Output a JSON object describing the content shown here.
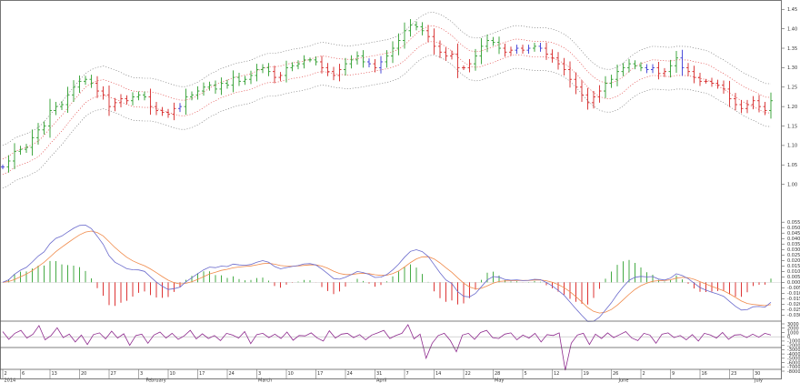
{
  "chart_data": [
    {
      "type": "candlestick-bands",
      "title": "",
      "ylim": [
        0.95,
        1.46
      ],
      "y_ticks": [
        "1.45",
        "1.40",
        "1.35",
        "1.30",
        "1.25",
        "1.20",
        "1.15",
        "1.10",
        "1.05",
        "1.00"
      ],
      "price": [
        1.045,
        1.06,
        1.085,
        1.09,
        1.095,
        1.12,
        1.14,
        1.15,
        1.19,
        1.2,
        1.205,
        1.23,
        1.25,
        1.265,
        1.27,
        1.26,
        1.24,
        1.23,
        1.2,
        1.21,
        1.22,
        1.215,
        1.225,
        1.23,
        1.225,
        1.2,
        1.19,
        1.185,
        1.18,
        1.195,
        1.2,
        1.225,
        1.23,
        1.24,
        1.25,
        1.255,
        1.245,
        1.26,
        1.255,
        1.275,
        1.265,
        1.27,
        1.28,
        1.295,
        1.3,
        1.29,
        1.275,
        1.28,
        1.3,
        1.305,
        1.31,
        1.32,
        1.32,
        1.315,
        1.3,
        1.29,
        1.28,
        1.295,
        1.31,
        1.32,
        1.33,
        1.315,
        1.31,
        1.3,
        1.315,
        1.33,
        1.35,
        1.37,
        1.395,
        1.41,
        1.405,
        1.395,
        1.38,
        1.355,
        1.34,
        1.33,
        1.335,
        1.3,
        1.3,
        1.31,
        1.33,
        1.355,
        1.37,
        1.365,
        1.35,
        1.34,
        1.345,
        1.35,
        1.345,
        1.35,
        1.355,
        1.35,
        1.335,
        1.325,
        1.31,
        1.295,
        1.27,
        1.25,
        1.23,
        1.21,
        1.225,
        1.24,
        1.26,
        1.27,
        1.29,
        1.3,
        1.31,
        1.305,
        1.3,
        1.295,
        1.3,
        1.285,
        1.29,
        1.305,
        1.325,
        1.3,
        1.29,
        1.275,
        1.265,
        1.265,
        1.26,
        1.255,
        1.245,
        1.22,
        1.205,
        1.195,
        1.205,
        1.215,
        1.2,
        1.19,
        1.215
      ],
      "bands": {
        "inner_offset": 0.02,
        "outer_offset": 0.055
      },
      "ma_source": "close",
      "colors": {
        "up": "#2e9e2e",
        "down": "#d62828",
        "neutral": "#3a3ad6",
        "ma": "#e04040",
        "band": "#777777"
      }
    },
    {
      "type": "macd",
      "ylim": [
        -0.033,
        0.056
      ],
      "y_ticks": [
        "0.055",
        "0.050",
        "0.045",
        "0.040",
        "0.035",
        "0.030",
        "0.025",
        "0.020",
        "0.015",
        "0.010",
        "0.005",
        "0.000",
        "-0.005",
        "-0.010",
        "-0.015",
        "-0.020",
        "-0.025",
        "-0.030"
      ],
      "colors": {
        "macd": "#6a6acc",
        "signal": "#f08a4a",
        "hist_up": "#44aa44",
        "hist_down": "#dd3333"
      }
    },
    {
      "type": "oscillator",
      "ylim": [
        -8000,
        3000
      ],
      "y_ticks": [
        "3000",
        "2000",
        "1000",
        "0",
        "-1000",
        "-2000",
        "-3000",
        "-4000",
        "-5000",
        "-6000",
        "-7000",
        "-8000"
      ],
      "values": [
        1200,
        -600,
        800,
        1500,
        -300,
        600,
        2600,
        -700,
        300,
        2100,
        -200,
        600,
        -1200,
        400,
        -1800,
        500,
        900,
        -500,
        1300,
        -300,
        700,
        -2000,
        300,
        600,
        -1500,
        400,
        1100,
        -300,
        800,
        -600,
        200,
        1500,
        -500,
        700,
        -400,
        300,
        -900,
        800,
        400,
        -300,
        1200,
        -1600,
        500,
        800,
        -200,
        600,
        -400,
        1100,
        -800,
        300,
        200,
        900,
        -300,
        -1000,
        1400,
        -300,
        600,
        800,
        -200,
        500,
        -700,
        400,
        900,
        1500,
        -400,
        300,
        800,
        2800,
        -500,
        600,
        -5000,
        -1500,
        300,
        800,
        -900,
        -3500,
        400,
        800,
        -600,
        1000,
        1500,
        -200,
        -400,
        600,
        900,
        -700,
        400,
        -300,
        800,
        -1200,
        500,
        300,
        900,
        -7800,
        -1500,
        400,
        800,
        -1800,
        600,
        -400,
        900,
        -200,
        500,
        1200,
        -300,
        -900,
        800,
        400,
        -1500,
        600,
        900,
        -200,
        300,
        -700,
        500,
        -1000,
        800,
        400,
        -300,
        1000,
        -600,
        400,
        500,
        -200,
        600,
        -100,
        800,
        400
      ],
      "colors": {
        "line": "#8e2a8e",
        "zero": "#bbbbbb"
      }
    }
  ],
  "x_axis": {
    "day_labels": [
      "2",
      "6",
      "13",
      "20",
      "27",
      "3",
      "10",
      "17",
      "24",
      "3",
      "10",
      "17",
      "24",
      "31",
      "7",
      "14",
      "22",
      "28",
      "5",
      "12",
      "19",
      "26",
      "2",
      "9",
      "16",
      "23",
      "30"
    ],
    "month_labels": [
      "2014",
      "February",
      "March",
      "April",
      "May",
      "June",
      "July"
    ]
  }
}
